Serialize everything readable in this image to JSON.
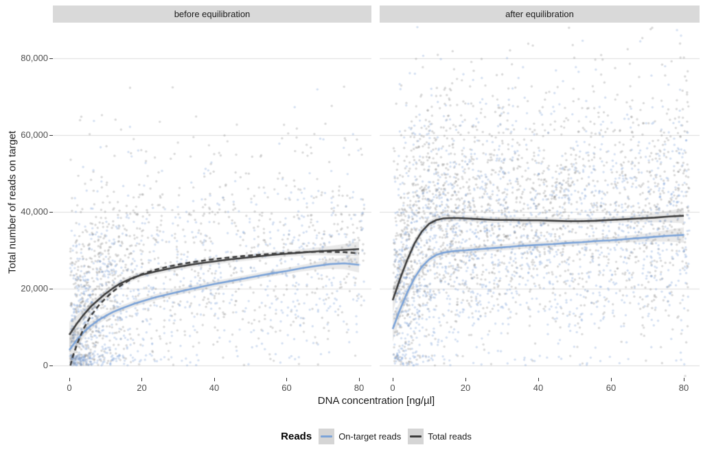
{
  "figure": {
    "facets": [
      {
        "label": "before equilibration"
      },
      {
        "label": "after equilibration"
      }
    ],
    "y_axis": {
      "title": "Total number of reads on target",
      "tick_labels": [
        "0",
        "20,000",
        "40,000",
        "60,000",
        "80,000"
      ],
      "tick_values": [
        0,
        20000,
        40000,
        60000,
        80000
      ]
    },
    "x_axis": {
      "title": "DNA concentration [ng/µl]",
      "tick_labels": [
        "0",
        "20",
        "40",
        "60",
        "80"
      ],
      "tick_values": [
        0,
        20,
        40,
        60,
        80
      ]
    },
    "legend": {
      "title": "Reads",
      "items": [
        {
          "label": "On-target reads",
          "color": "#7ba3d8",
          "dashed": false
        },
        {
          "label": "Total reads",
          "color": "#3b3b3b",
          "dashed": false
        }
      ]
    }
  },
  "colors": {
    "strip_bg": "#d9d9d9",
    "panel_bg": "#ffffff",
    "gridline": "#dcdcdc",
    "tick": "#333333",
    "on_target_line": "#7ba3d8",
    "total_line": "#3b3b3b",
    "gray_point": "rgba(115,115,115,0.27)",
    "blue_point": "rgba(125,160,215,0.33)",
    "ribbon": "rgba(110,110,110,0.15)"
  },
  "chart_data": {
    "type": "scatter",
    "title": "",
    "xlabel": "DNA concentration [ng/µl]",
    "ylabel": "Total number of reads on target",
    "xlim": [
      -4.5,
      83.5
    ],
    "ylim": [
      -3000,
      92500
    ],
    "grid": "horizontal-only",
    "legend_position": "bottom",
    "facets": [
      {
        "name": "before equilibration",
        "smooth_series": [
          {
            "name": "Total reads (dashed)",
            "style": "dashed",
            "color": "#3b3b3b",
            "points": [
              [
                0.3,
                0
              ],
              [
                1,
                2500
              ],
              [
                2,
                5200
              ],
              [
                3,
                7600
              ],
              [
                4,
                9700
              ],
              [
                6,
                13000
              ],
              [
                8,
                15500
              ],
              [
                10,
                17500
              ],
              [
                12,
                19200
              ],
              [
                14,
                20700
              ],
              [
                16,
                21900
              ],
              [
                18,
                22900
              ],
              [
                20,
                23800
              ],
              [
                24,
                25000
              ],
              [
                28,
                25900
              ],
              [
                32,
                26600
              ],
              [
                36,
                27200
              ],
              [
                40,
                27700
              ],
              [
                44,
                28100
              ],
              [
                48,
                28500
              ],
              [
                52,
                28800
              ],
              [
                56,
                29100
              ],
              [
                60,
                29300
              ],
              [
                64,
                29500
              ],
              [
                68,
                29600
              ],
              [
                72,
                29600
              ],
              [
                76,
                29500
              ],
              [
                80,
                29200
              ]
            ]
          },
          {
            "name": "Total reads",
            "style": "solid",
            "color": "#3b3b3b",
            "points": [
              [
                0,
                8000
              ],
              [
                2,
                10800
              ],
              [
                4,
                13300
              ],
              [
                6,
                15400
              ],
              [
                8,
                17100
              ],
              [
                10,
                18700
              ],
              [
                12,
                20100
              ],
              [
                14,
                21300
              ],
              [
                16,
                22200
              ],
              [
                18,
                23000
              ],
              [
                20,
                23600
              ],
              [
                24,
                24500
              ],
              [
                28,
                25300
              ],
              [
                32,
                26000
              ],
              [
                36,
                26600
              ],
              [
                40,
                27100
              ],
              [
                44,
                27600
              ],
              [
                48,
                28000
              ],
              [
                52,
                28400
              ],
              [
                56,
                28800
              ],
              [
                60,
                29100
              ],
              [
                64,
                29400
              ],
              [
                68,
                29700
              ],
              [
                72,
                29900
              ],
              [
                76,
                30100
              ],
              [
                80,
                30300
              ]
            ]
          },
          {
            "name": "On-target reads",
            "style": "solid",
            "color": "#7ba3d8",
            "points": [
              [
                0,
                4000
              ],
              [
                2,
                6600
              ],
              [
                4,
                8700
              ],
              [
                6,
                10400
              ],
              [
                8,
                11800
              ],
              [
                10,
                12900
              ],
              [
                12,
                13900
              ],
              [
                14,
                14700
              ],
              [
                16,
                15400
              ],
              [
                18,
                16100
              ],
              [
                20,
                16700
              ],
              [
                24,
                17800
              ],
              [
                28,
                18700
              ],
              [
                32,
                19600
              ],
              [
                36,
                20400
              ],
              [
                40,
                21200
              ],
              [
                44,
                21900
              ],
              [
                48,
                22600
              ],
              [
                52,
                23300
              ],
              [
                56,
                24000
              ],
              [
                60,
                24600
              ],
              [
                64,
                25300
              ],
              [
                68,
                25900
              ],
              [
                72,
                26400
              ],
              [
                76,
                26600
              ],
              [
                80,
                26200
              ]
            ]
          }
        ],
        "scatter_cloud": {
          "description": "semi-transparent point cloud; gray = total reads, blue = on-target reads",
          "seed": 101,
          "n_gray": 1150,
          "n_blue": 950,
          "x_uniform_frac": 0.62,
          "x_cluster_sd": 9,
          "y_sd": 12500,
          "y_skew_prob": 0.2,
          "y_skew_sd": 15000
        }
      },
      {
        "name": "after equilibration",
        "smooth_series": [
          {
            "name": "Total reads",
            "style": "solid",
            "color": "#3b3b3b",
            "points": [
              [
                0,
                17000
              ],
              [
                2,
                22500
              ],
              [
                4,
                27500
              ],
              [
                6,
                31800
              ],
              [
                8,
                34900
              ],
              [
                10,
                36900
              ],
              [
                12,
                37900
              ],
              [
                14,
                38300
              ],
              [
                16,
                38400
              ],
              [
                18,
                38400
              ],
              [
                20,
                38300
              ],
              [
                24,
                38100
              ],
              [
                28,
                37900
              ],
              [
                32,
                37900
              ],
              [
                36,
                37800
              ],
              [
                40,
                37800
              ],
              [
                44,
                37700
              ],
              [
                48,
                37600
              ],
              [
                52,
                37600
              ],
              [
                56,
                37700
              ],
              [
                60,
                37900
              ],
              [
                64,
                38100
              ],
              [
                68,
                38300
              ],
              [
                72,
                38500
              ],
              [
                76,
                38800
              ],
              [
                80,
                39000
              ]
            ]
          },
          {
            "name": "On-target reads",
            "style": "solid",
            "color": "#7ba3d8",
            "points": [
              [
                0,
                9500
              ],
              [
                2,
                14500
              ],
              [
                4,
                19000
              ],
              [
                6,
                22800
              ],
              [
                8,
                25700
              ],
              [
                10,
                27600
              ],
              [
                12,
                28800
              ],
              [
                14,
                29400
              ],
              [
                16,
                29700
              ],
              [
                18,
                29900
              ],
              [
                20,
                30000
              ],
              [
                24,
                30300
              ],
              [
                28,
                30600
              ],
              [
                32,
                30900
              ],
              [
                36,
                31200
              ],
              [
                40,
                31400
              ],
              [
                44,
                31600
              ],
              [
                48,
                31900
              ],
              [
                52,
                32100
              ],
              [
                56,
                32400
              ],
              [
                60,
                32600
              ],
              [
                64,
                32900
              ],
              [
                68,
                33200
              ],
              [
                72,
                33500
              ],
              [
                76,
                33800
              ],
              [
                80,
                34000
              ]
            ]
          }
        ],
        "scatter_cloud": {
          "description": "semi-transparent point cloud; gray = total reads, blue = on-target reads",
          "seed": 202,
          "n_gray": 2000,
          "n_blue": 1600,
          "x_uniform_frac": 0.8,
          "x_cluster_sd": 12,
          "y_sd": 15000,
          "y_skew_prob": 0.25,
          "y_skew_sd": 17000
        }
      }
    ]
  }
}
